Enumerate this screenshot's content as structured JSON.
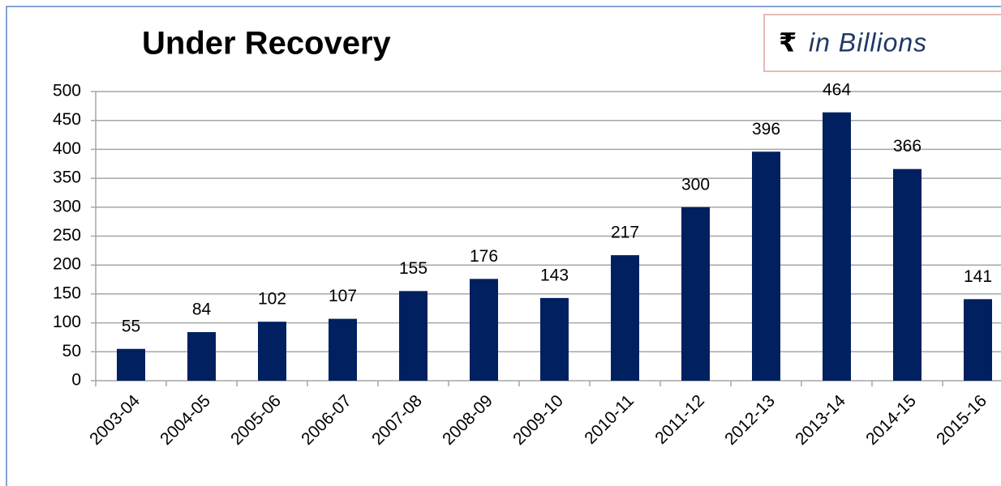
{
  "chart_data": {
    "type": "bar",
    "title": "Under Recovery",
    "unit_symbol": "₹",
    "unit_text": "in Billions",
    "categories": [
      "2003-04",
      "2004-05",
      "2005-06",
      "2006-07",
      "2007-08",
      "2008-09",
      "2009-10",
      "2010-11",
      "2011-12",
      "2012-13",
      "2013-14",
      "2014-15",
      "2015-16"
    ],
    "values": [
      55,
      84,
      102,
      107,
      155,
      176,
      143,
      217,
      300,
      396,
      464,
      366,
      141
    ],
    "color": "#002060",
    "ylim": [
      0,
      500
    ],
    "yticks": [
      0,
      50,
      100,
      150,
      200,
      250,
      300,
      350,
      400,
      450,
      500
    ],
    "grid": true
  }
}
